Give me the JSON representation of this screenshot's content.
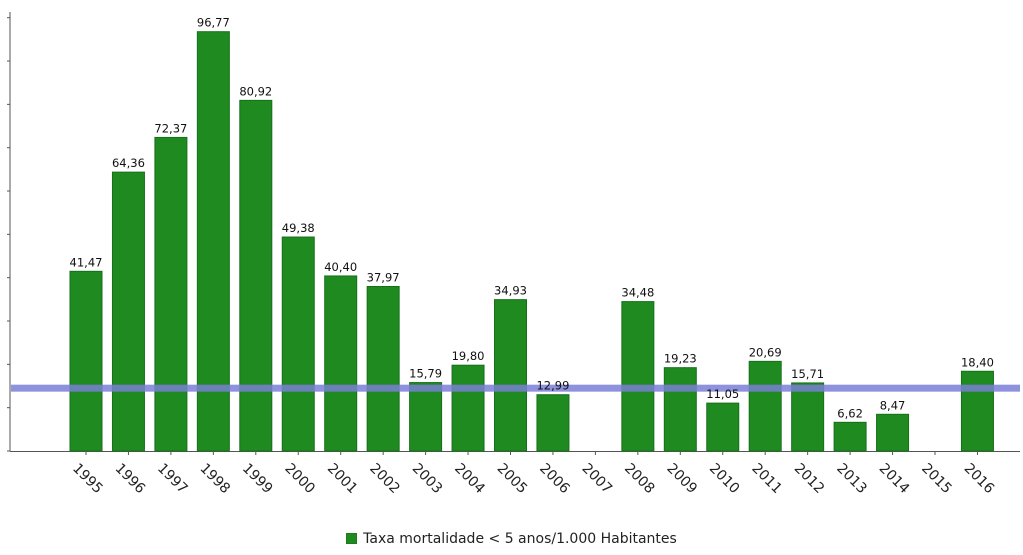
{
  "chart_data": {
    "type": "bar",
    "categories": [
      "1995",
      "1996",
      "1997",
      "1998",
      "1999",
      "2000",
      "2001",
      "2002",
      "2003",
      "2004",
      "2005",
      "2006",
      "2007",
      "2008",
      "2009",
      "2010",
      "2011",
      "2012",
      "2013",
      "2014",
      "2015",
      "2016"
    ],
    "series": [
      {
        "name": "Taxa mortalidade < 5 anos/1.000 Habitantes",
        "values": [
          41.47,
          64.36,
          72.37,
          96.77,
          80.92,
          49.38,
          40.4,
          37.97,
          15.79,
          19.8,
          34.93,
          12.99,
          null,
          34.48,
          19.23,
          11.05,
          20.69,
          15.71,
          6.62,
          8.47,
          null,
          18.4
        ],
        "labels": [
          "41,47",
          "64,36",
          "72,37",
          "96,77",
          "80,92",
          "49,38",
          "40,40",
          "37,97",
          "15,79",
          "19,80",
          "34,93",
          "12,99",
          "",
          "34,48",
          "19,23",
          "11,05",
          "20,69",
          "15,71",
          "6,62",
          "8,47",
          "",
          "18,40"
        ]
      }
    ],
    "reference_line": {
      "value": 14.5
    },
    "ylim": [
      0,
      100
    ],
    "xlabel": "",
    "ylabel": "",
    "legend_position": "bottom",
    "colors": {
      "bar": "#1f8a1f",
      "bar_edge": "#16701a",
      "reference_line": "#7a7fd6",
      "axis": "#555555"
    }
  },
  "legend": {
    "label": "Taxa mortalidade < 5 anos/1.000 Habitantes"
  }
}
